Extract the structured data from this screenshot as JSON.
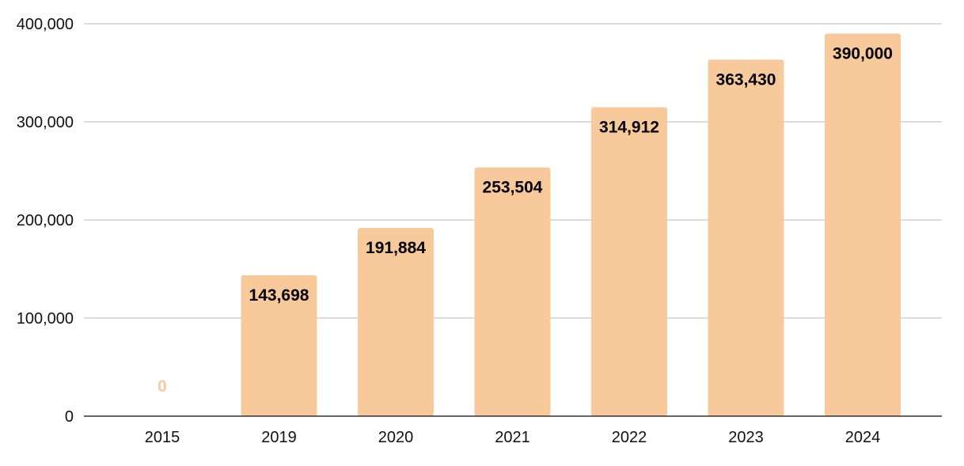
{
  "chart_data": {
    "type": "bar",
    "categories": [
      "2015",
      "2019",
      "2020",
      "2021",
      "2022",
      "2023",
      "2024"
    ],
    "values": [
      0,
      143698,
      191884,
      253504,
      314912,
      363430,
      390000
    ],
    "data_labels": [
      "0",
      "143,698",
      "191,884",
      "253,504",
      "314,912",
      "363,430",
      "390,000"
    ],
    "title": "",
    "xlabel": "",
    "ylabel": "",
    "ylim": [
      0,
      400000
    ],
    "yticks": [
      0,
      100000,
      200000,
      300000,
      400000
    ],
    "ytick_labels": [
      "0",
      "100,000",
      "200,000",
      "300,000",
      "400,000"
    ],
    "grid": true,
    "legend": "none",
    "colors": {
      "bar": "#f7c99b",
      "label": "#000000",
      "zero_label": "#f7c99b",
      "grid": "#c8c8c8",
      "axis": "#333333"
    }
  }
}
